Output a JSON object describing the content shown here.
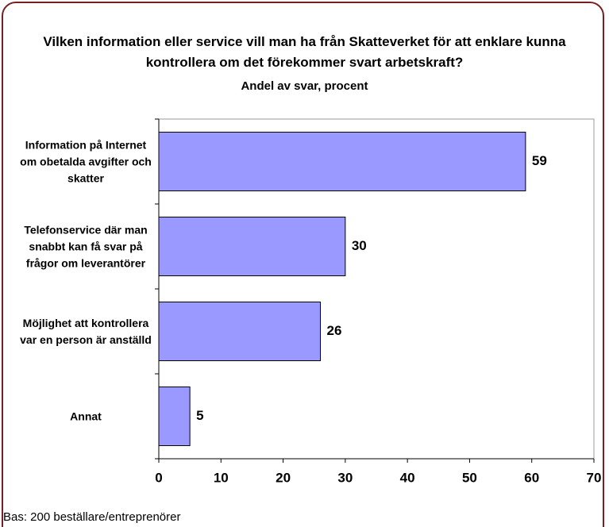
{
  "chart_data": {
    "type": "bar",
    "orientation": "horizontal",
    "title": "Vilken information eller service vill man ha från Skatteverket för att enklare kunna kontrollera om det förekommer svart arbetskraft?",
    "subtitle": "Andel av svar, procent",
    "categories": [
      "Information på Internet om obetalda avgifter och skatter",
      "Telefonservice där man snabbt kan få svar på frågor om leverantörer",
      "Möjlighet att kontrollera var en person är anställd",
      "Annat"
    ],
    "values": [
      59,
      30,
      26,
      5
    ],
    "color": "#9999ff",
    "xlim": [
      0,
      70
    ],
    "xticks": [
      0,
      10,
      20,
      30,
      40,
      50,
      60,
      70
    ],
    "note": "Bas: 200 beställare/entreprenörer"
  }
}
